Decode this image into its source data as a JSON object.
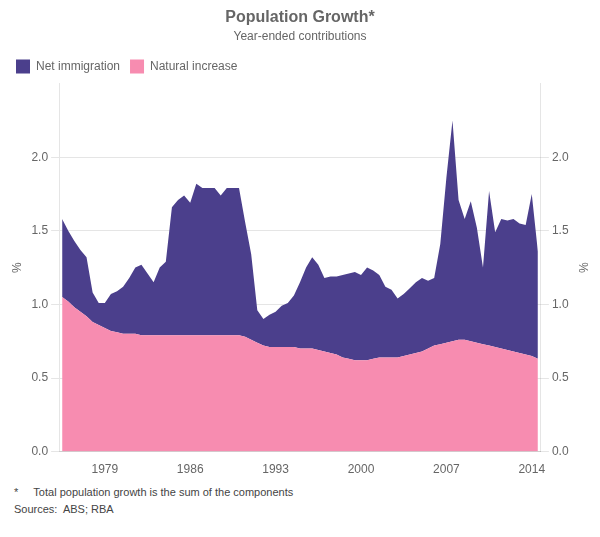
{
  "chart_data": {
    "type": "area",
    "title": "Population Growth*",
    "subtitle": "Year-ended contributions",
    "ylabel": "%",
    "y2label": "%",
    "annotations": [
      "*     Total population growth is the sum of the components",
      "Sources:  ABS; RBA"
    ],
    "stacked": true,
    "legend": "upper left",
    "grid": "y",
    "xlim": [
      1975.25,
      2014.75
    ],
    "xticks": [
      1979,
      1986,
      1993,
      2000,
      2007,
      2014
    ],
    "ylim": [
      0.0,
      2.5
    ],
    "yticks": [
      {
        "value": 0.0,
        "label": "0.0"
      },
      0.5,
      {
        "value": 1.0,
        "label": "1.0"
      },
      1.5,
      {
        "value": 2.0,
        "label": "2.0"
      }
    ],
    "y2lim": [
      0.0,
      2.5
    ],
    "y2ticks": [
      {
        "value": 0.0,
        "label": "0.0"
      },
      0.5,
      {
        "value": 1.0,
        "label": "1.0"
      },
      1.5,
      {
        "value": 2.0,
        "label": "2.0"
      }
    ],
    "x": [
      1975.5,
      1976.0,
      1976.5,
      1977.0,
      1977.5,
      1978.0,
      1978.5,
      1979.0,
      1979.5,
      1980.0,
      1980.5,
      1981.0,
      1981.5,
      1982.0,
      1982.5,
      1983.0,
      1983.5,
      1984.0,
      1984.5,
      1985.0,
      1985.5,
      1986.0,
      1986.5,
      1987.0,
      1987.5,
      1988.0,
      1988.5,
      1989.0,
      1989.5,
      1990.0,
      1990.5,
      1991.0,
      1991.5,
      1992.0,
      1992.5,
      1993.0,
      1993.5,
      1994.0,
      1994.5,
      1995.0,
      1995.5,
      1996.0,
      1996.5,
      1997.0,
      1997.5,
      1998.0,
      1998.5,
      1999.0,
      1999.5,
      2000.0,
      2000.5,
      2001.0,
      2001.5,
      2002.0,
      2002.5,
      2003.0,
      2003.5,
      2004.0,
      2004.5,
      2005.0,
      2005.5,
      2006.0,
      2006.5,
      2007.0,
      2007.5,
      2008.0,
      2008.5,
      2009.0,
      2009.5,
      2010.0,
      2010.5,
      2011.0,
      2011.5,
      2012.0,
      2012.5,
      2013.0,
      2013.5,
      2014.0,
      2014.5
    ],
    "series": [
      {
        "name": "Natural increase",
        "color": "#f78cb0",
        "values": [
          1.05,
          1.02,
          0.98,
          0.95,
          0.92,
          0.88,
          0.86,
          0.84,
          0.82,
          0.81,
          0.8,
          0.8,
          0.8,
          0.79,
          0.79,
          0.79,
          0.79,
          0.79,
          0.79,
          0.79,
          0.79,
          0.79,
          0.79,
          0.79,
          0.79,
          0.79,
          0.79,
          0.79,
          0.79,
          0.79,
          0.78,
          0.76,
          0.74,
          0.72,
          0.71,
          0.71,
          0.71,
          0.71,
          0.71,
          0.7,
          0.7,
          0.7,
          0.69,
          0.68,
          0.67,
          0.66,
          0.64,
          0.63,
          0.62,
          0.62,
          0.62,
          0.63,
          0.64,
          0.64,
          0.64,
          0.64,
          0.65,
          0.66,
          0.67,
          0.68,
          0.7,
          0.72,
          0.73,
          0.74,
          0.75,
          0.76,
          0.76,
          0.75,
          0.74,
          0.73,
          0.72,
          0.71,
          0.7,
          0.69,
          0.68,
          0.67,
          0.66,
          0.65,
          0.63
        ]
      },
      {
        "name": "Net immigration",
        "color": "#4b3f8c",
        "values": [
          0.53,
          0.48,
          0.45,
          0.42,
          0.4,
          0.2,
          0.15,
          0.17,
          0.25,
          0.28,
          0.32,
          0.38,
          0.45,
          0.48,
          0.42,
          0.36,
          0.46,
          0.5,
          0.87,
          0.92,
          0.95,
          0.9,
          1.03,
          1.0,
          1.0,
          1.0,
          0.95,
          1.0,
          1.0,
          1.0,
          0.78,
          0.58,
          0.22,
          0.18,
          0.22,
          0.24,
          0.28,
          0.3,
          0.35,
          0.45,
          0.55,
          0.62,
          0.58,
          0.5,
          0.52,
          0.53,
          0.56,
          0.58,
          0.6,
          0.58,
          0.63,
          0.6,
          0.56,
          0.48,
          0.46,
          0.4,
          0.42,
          0.45,
          0.48,
          0.5,
          0.46,
          0.46,
          0.68,
          1.12,
          1.5,
          0.95,
          0.82,
          0.95,
          0.78,
          0.52,
          1.05,
          0.78,
          0.88,
          0.88,
          0.9,
          0.88,
          0.88,
          1.1,
          0.73
        ]
      }
    ]
  }
}
